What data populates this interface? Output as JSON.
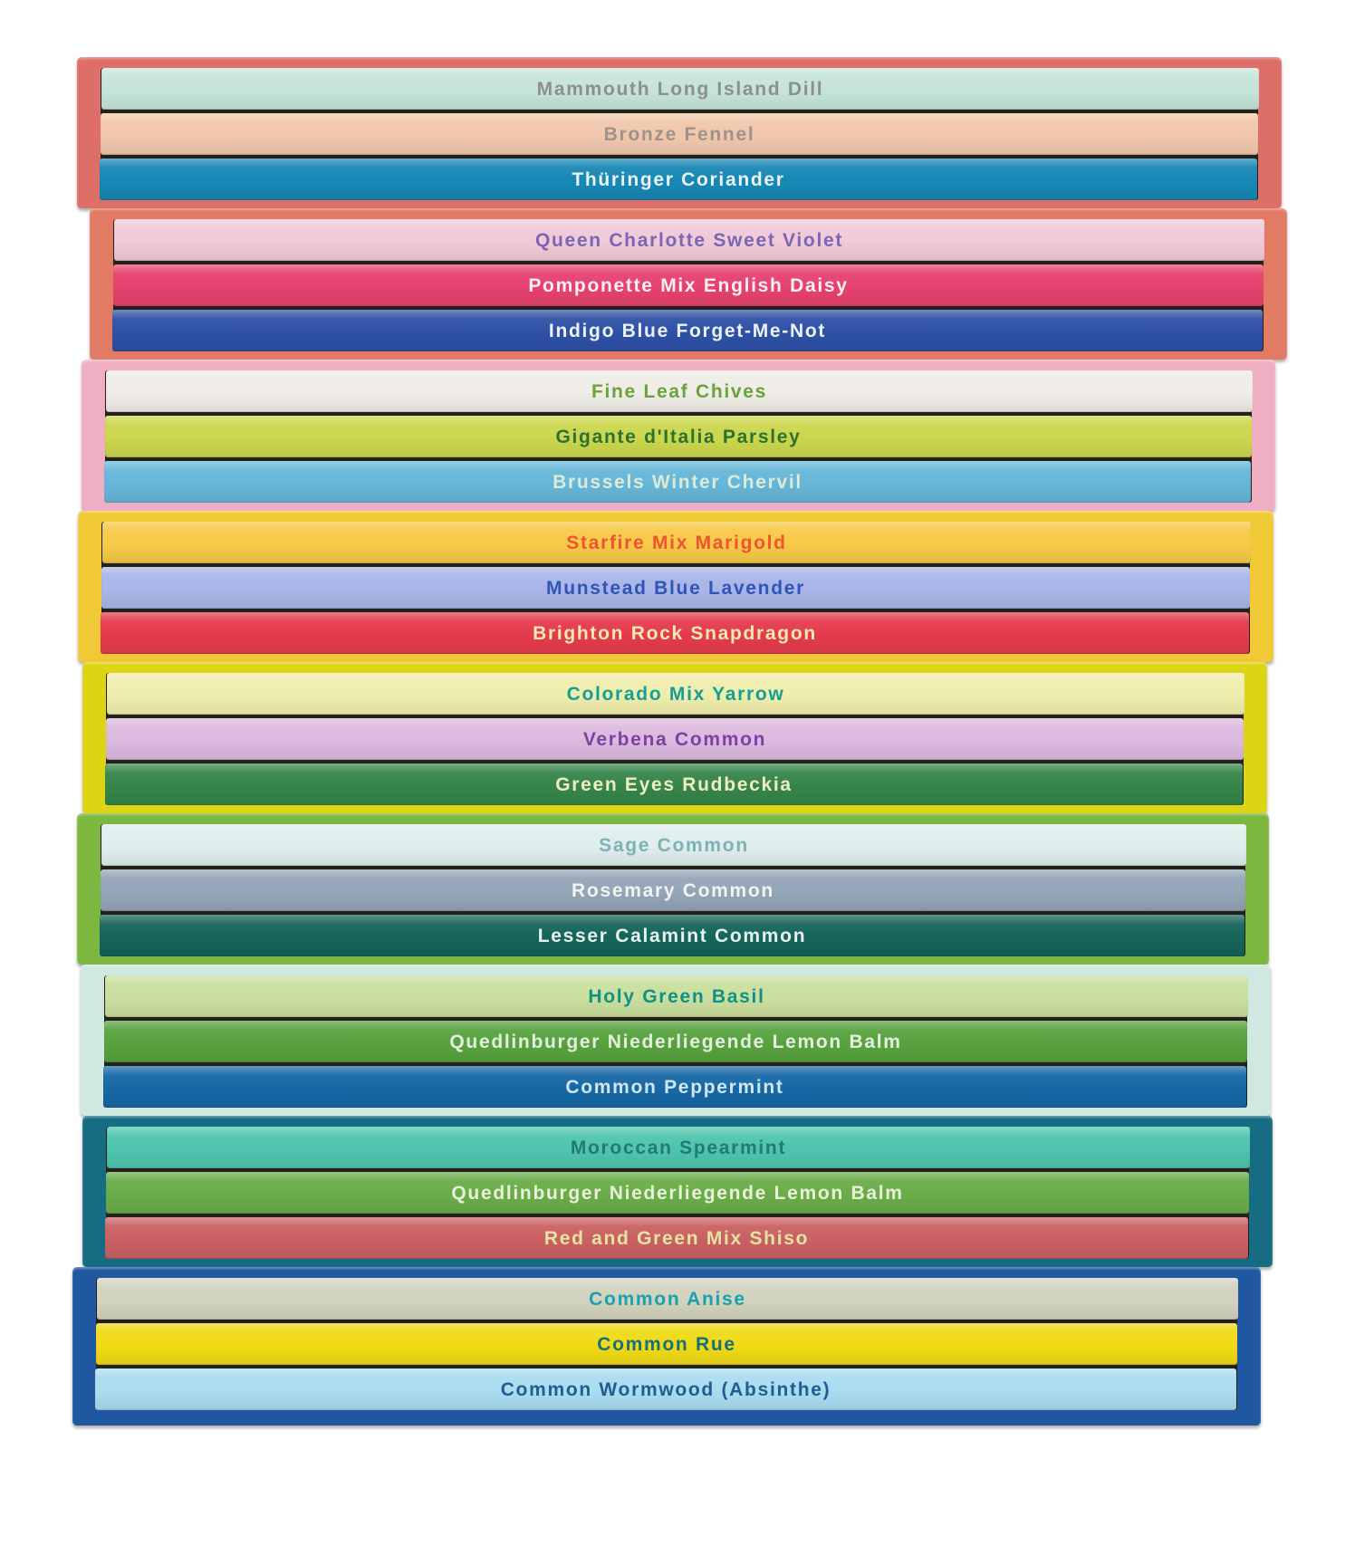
{
  "stack": {
    "groups": [
      {
        "box_color": "#dd6f68",
        "spines": [
          {
            "label": "Mammouth Long Island Dill",
            "bg": "#c6e4da",
            "fg": "#8e8e8a"
          },
          {
            "label": "Bronze Fennel",
            "bg": "#f1c7ab",
            "fg": "#9c938b"
          },
          {
            "label": "Thüringer Coriander",
            "bg": "#1787b5",
            "fg": "#eaf4f4"
          }
        ]
      },
      {
        "box_color": "#e27b64",
        "spines": [
          {
            "label": "Queen Charlotte Sweet Violet",
            "bg": "#f1c9d8",
            "fg": "#7a66b2"
          },
          {
            "label": "Pomponette Mix English Daisy",
            "bg": "#e6416f",
            "fg": "#f8f0f2"
          },
          {
            "label": "Indigo Blue Forget-Me-Not",
            "bg": "#2e51a6",
            "fg": "#eef1f7"
          }
        ]
      },
      {
        "box_color": "#efaec2",
        "spines": [
          {
            "label": "Fine Leaf Chives",
            "bg": "#f0ece7",
            "fg": "#6aa23c"
          },
          {
            "label": "Gigante d'Italia Parsley",
            "bg": "#cbd64d",
            "fg": "#2b7231"
          },
          {
            "label": "Brussels Winter Chervil",
            "bg": "#66b6d8",
            "fg": "#dcead8"
          }
        ]
      },
      {
        "box_color": "#f1c836",
        "spines": [
          {
            "label": "Starfire Mix Marigold",
            "bg": "#f7c947",
            "fg": "#ef5330"
          },
          {
            "label": "Munstead Blue Lavender",
            "bg": "#a9b5e8",
            "fg": "#2e55b7"
          },
          {
            "label": "Brighton Rock Snapdragon",
            "bg": "#e43b4c",
            "fg": "#f4e9b0"
          }
        ]
      },
      {
        "box_color": "#ddd414",
        "spines": [
          {
            "label": "Colorado Mix Yarrow",
            "bg": "#f0eeac",
            "fg": "#139e97"
          },
          {
            "label": "Verbena Common",
            "bg": "#dcb9de",
            "fg": "#7c42a2"
          },
          {
            "label": "Green Eyes Rudbeckia",
            "bg": "#35854a",
            "fg": "#f1edc0"
          }
        ]
      },
      {
        "box_color": "#7cb83f",
        "spines": [
          {
            "label": "Sage Common",
            "bg": "#dfeeec",
            "fg": "#7eb1b6"
          },
          {
            "label": "Rosemary Common",
            "bg": "#94a5b8",
            "fg": "#f2f4f0"
          },
          {
            "label": "Lesser Calamint Common",
            "bg": "#15645a",
            "fg": "#e9f1ec"
          }
        ]
      },
      {
        "box_color": "#cfe8e2",
        "spines": [
          {
            "label": "Holy Green Basil",
            "bg": "#cadf9e",
            "fg": "#0f9186"
          },
          {
            "label": "Quedlinburger Niederliegende Lemon Balm",
            "bg": "#57a23e",
            "fg": "#e4efe0"
          },
          {
            "label": "Common Peppermint",
            "bg": "#1668a6",
            "fg": "#d3e5ee"
          }
        ]
      },
      {
        "box_color": "#166c82",
        "spines": [
          {
            "label": "Moroccan Spearmint",
            "bg": "#4fc4ae",
            "fg": "#1f7a78"
          },
          {
            "label": "Quedlinburger Niederliegende Lemon Balm",
            "bg": "#69ac48",
            "fg": "#e9f2d9"
          },
          {
            "label": "Red and Green Mix Shiso",
            "bg": "#c96063",
            "fg": "#e4e4a2"
          }
        ]
      },
      {
        "box_color": "#1f58a0",
        "spines": [
          {
            "label": "Common Anise",
            "bg": "#d2d3bd",
            "fg": "#19a0b4"
          },
          {
            "label": "Common Rue",
            "bg": "#f0da15",
            "fg": "#16707c"
          },
          {
            "label": "Common Wormwood (Absinthe)",
            "bg": "#aadcf0",
            "fg": "#205d90"
          }
        ]
      }
    ]
  }
}
